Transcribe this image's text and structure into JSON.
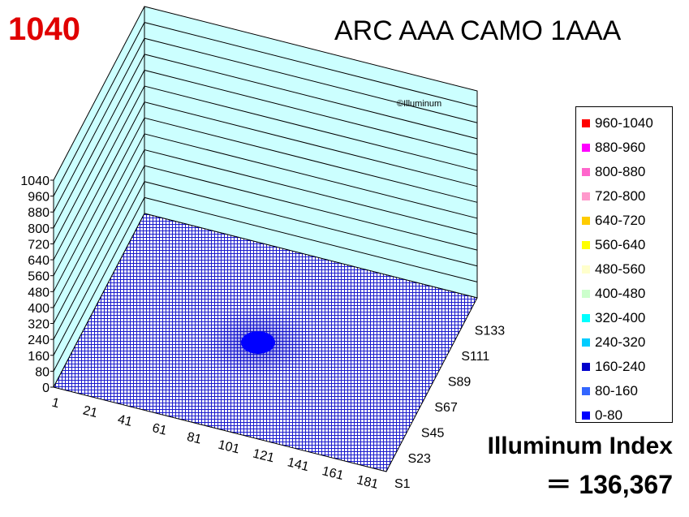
{
  "header": {
    "peak_value": "1040",
    "title": "ARC AAA CAMO 1AAA"
  },
  "watermark": "©Illuminum",
  "footer": {
    "index_label": "Illuminum Index",
    "index_value": "＝ 136,367"
  },
  "colors": {
    "peak_text": "#e00000",
    "wall_fill": "#ccffff",
    "mesh": "#0000cc",
    "hotspot": "#0000ff"
  },
  "chart_data": {
    "type": "surface3d",
    "title": "ARC AAA CAMO 1AAA",
    "z_ticks": [
      "0",
      "80",
      "160",
      "240",
      "320",
      "400",
      "480",
      "560",
      "640",
      "720",
      "800",
      "880",
      "960",
      "1040"
    ],
    "zlim": [
      0,
      1040
    ],
    "x_ticks": [
      "1",
      "21",
      "41",
      "61",
      "81",
      "101",
      "121",
      "141",
      "161",
      "181"
    ],
    "y_ticks": [
      "S1",
      "S23",
      "S45",
      "S67",
      "S89",
      "S111",
      "S133"
    ],
    "max_value": 1040,
    "peak_location": {
      "x": 111,
      "y": "S89"
    },
    "grid": true,
    "legend_position": "right",
    "legend": [
      {
        "label": "960-1040",
        "color": "#ff0000"
      },
      {
        "label": "880-960",
        "color": "#ff00ff"
      },
      {
        "label": "800-880",
        "color": "#ff66cc"
      },
      {
        "label": "720-800",
        "color": "#ff99cc"
      },
      {
        "label": "640-720",
        "color": "#ffcc00"
      },
      {
        "label": "560-640",
        "color": "#ffff00"
      },
      {
        "label": "480-560",
        "color": "#ffffcc"
      },
      {
        "label": "400-480",
        "color": "#ccffcc"
      },
      {
        "label": "320-400",
        "color": "#00ffff"
      },
      {
        "label": "240-320",
        "color": "#00ccff"
      },
      {
        "label": "160-240",
        "color": "#0000cc"
      },
      {
        "label": "80-160",
        "color": "#3366ff"
      },
      {
        "label": "0-80",
        "color": "#0000ff"
      }
    ]
  }
}
